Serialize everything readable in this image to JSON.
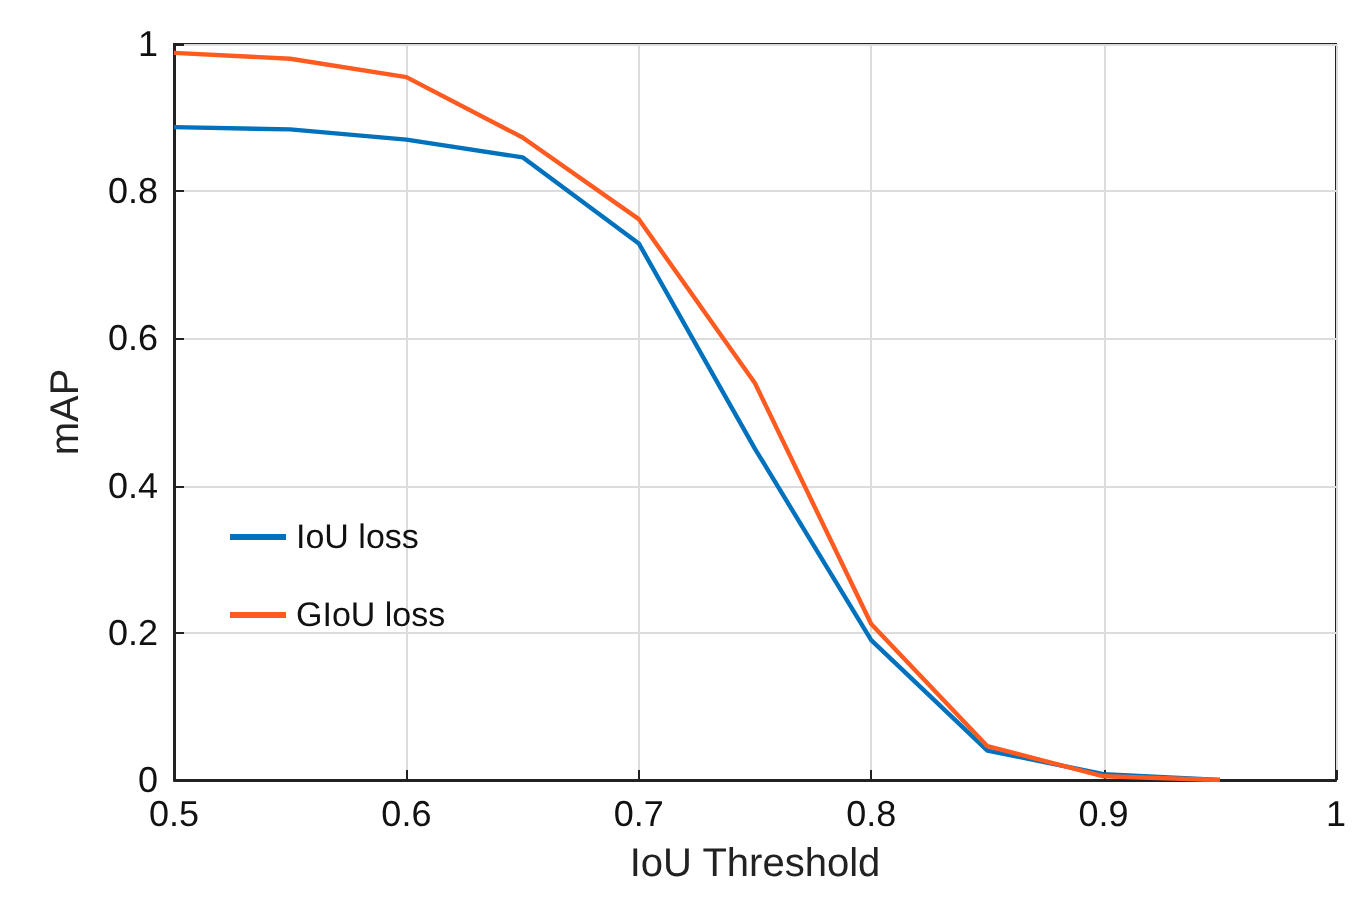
{
  "chart_data": {
    "type": "line",
    "xlabel": "IoU Threshold",
    "ylabel": "mAP",
    "x": [
      0.5,
      0.55,
      0.6,
      0.65,
      0.7,
      0.75,
      0.8,
      0.85,
      0.9,
      0.95
    ],
    "series": [
      {
        "name": "IoU loss",
        "color": "#0072bd",
        "values": [
          0.887,
          0.884,
          0.87,
          0.846,
          0.729,
          0.45,
          0.19,
          0.04,
          0.008,
          0
        ]
      },
      {
        "name": "GIoU loss",
        "color": "#ff5a1f",
        "values": [
          0.988,
          0.98,
          0.955,
          0.873,
          0.762,
          0.539,
          0.212,
          0.046,
          0.005,
          0
        ]
      }
    ],
    "xlim": [
      0.5,
      1
    ],
    "xticks": [
      0.5,
      0.6,
      0.7,
      0.8,
      0.9,
      1
    ],
    "ylim": [
      0,
      1
    ],
    "yticks": [
      0,
      0.2,
      0.4,
      0.6,
      0.8,
      1
    ],
    "grid": true,
    "legend": "bottom left",
    "marker": "none",
    "line_style": "solid"
  }
}
